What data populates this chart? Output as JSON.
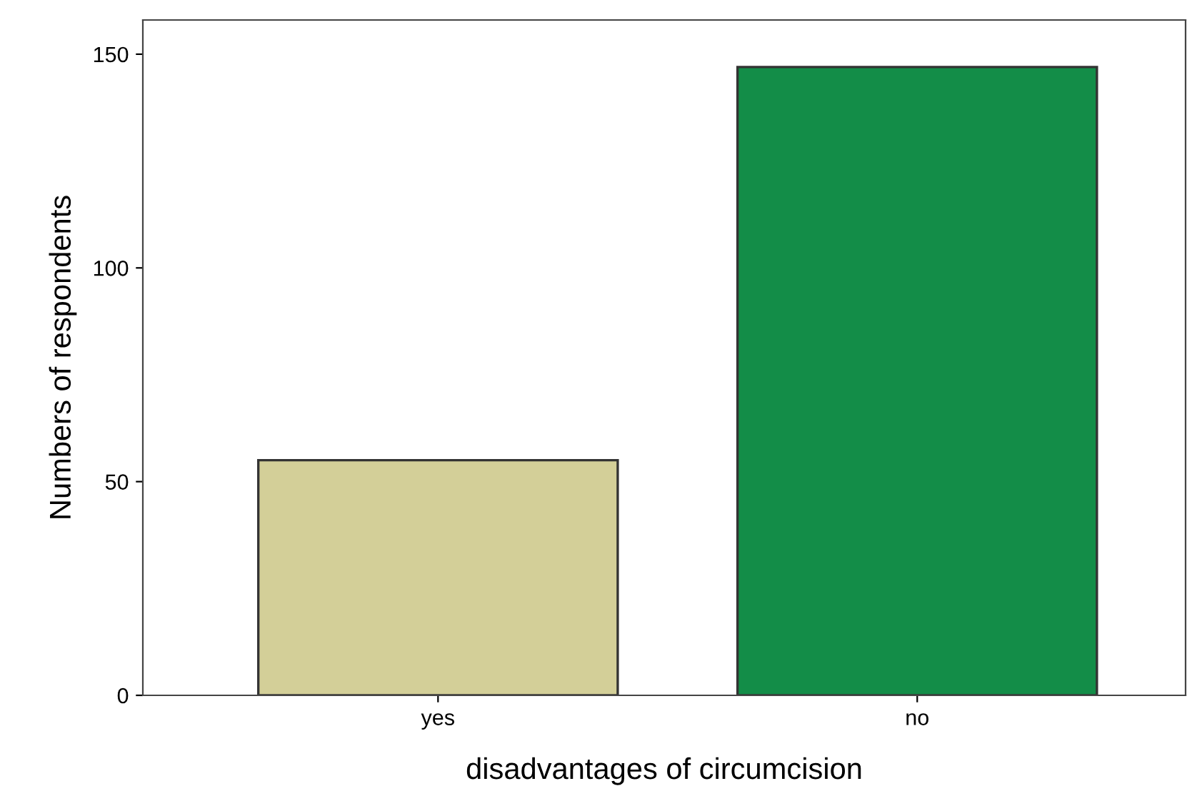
{
  "chart_data": {
    "type": "bar",
    "xlabel": "disadvantages of circumcision",
    "ylabel": "Numbers of respondents",
    "categories": [
      "yes",
      "no"
    ],
    "values": [
      55,
      147
    ],
    "colors": [
      "#d3cf98",
      "#138d48"
    ],
    "ylim": [
      0,
      158
    ],
    "yticks": [
      0,
      50,
      100,
      150
    ],
    "grid": false
  }
}
